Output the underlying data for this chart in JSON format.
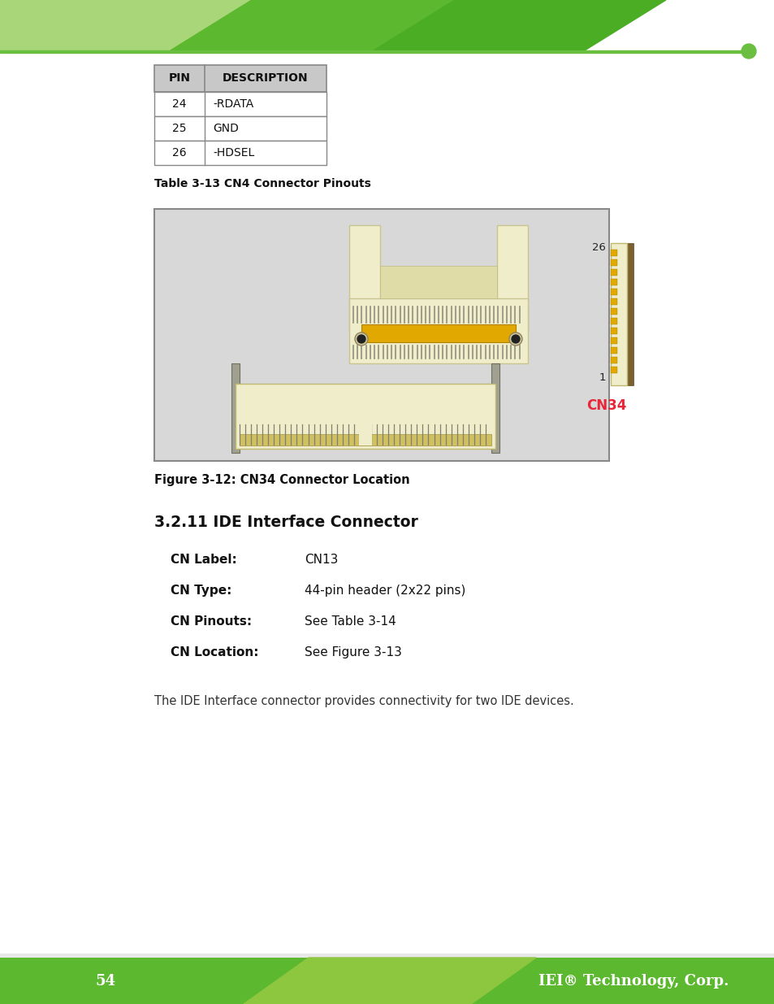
{
  "page_bg": "#ffffff",
  "footer_page_num": "54",
  "footer_text": "IEI® Technology, Corp.",
  "table_caption": "Table 3-13 CN4 Connector Pinouts",
  "table_cols": [
    "PIN",
    "DESCRIPTION"
  ],
  "table_rows": [
    [
      "24",
      "-RDATA"
    ],
    [
      "25",
      "GND"
    ],
    [
      "26",
      "-HDSEL"
    ]
  ],
  "fig_caption": "Figure 3-12: CN34 Connector Location",
  "section_title": "3.2.11 IDE Interface Connector",
  "cn_label_key": "CN Label:",
  "cn_label_val": "CN13",
  "cn_type_key": "CN Type:",
  "cn_type_val": "44-pin header (2x22 pins)",
  "cn_pinouts_key": "CN Pinouts:",
  "cn_pinouts_val": "See Table 3-14",
  "cn_location_key": "CN Location:",
  "cn_location_val": "See Figure 3-13",
  "body_text": "The IDE Interface connector provides connectivity for two IDE devices.",
  "header_light_green": "#a8d678",
  "header_mid_green": "#5cb82e",
  "header_dark_green": "#4aad24",
  "header_line_green": "#6abf40",
  "footer_dark_green": "#5cb82e",
  "footer_light_green": "#8dc63f",
  "cn34_red": "#e8263a",
  "connector_bg": "#d8d8d8",
  "connector_body_cream": "#f0edca",
  "connector_body_cream2": "#e8e5b8",
  "connector_gold": "#e0a800",
  "connector_gold2": "#c89000",
  "connector_grey_pins": "#a0a090",
  "connector_brown": "#7a6030",
  "connector_shadow": "#c8c8b0"
}
